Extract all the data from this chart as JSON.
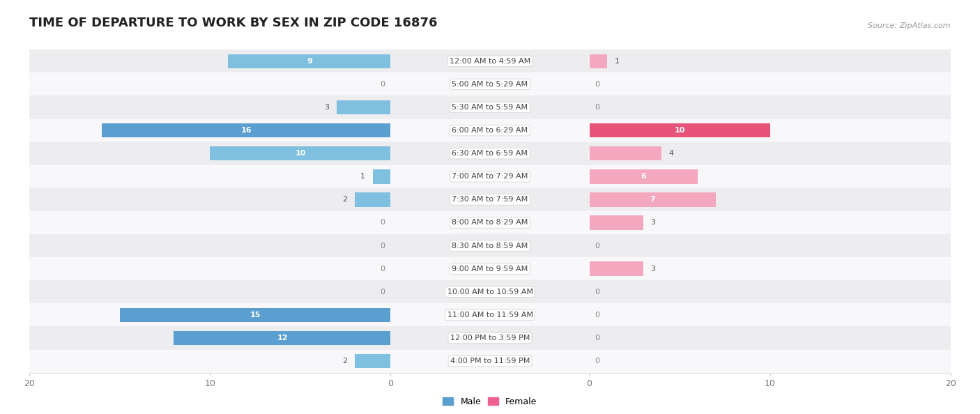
{
  "title": "TIME OF DEPARTURE TO WORK BY SEX IN ZIP CODE 16876",
  "source": "Source: ZipAtlas.com",
  "categories": [
    "12:00 AM to 4:59 AM",
    "5:00 AM to 5:29 AM",
    "5:30 AM to 5:59 AM",
    "6:00 AM to 6:29 AM",
    "6:30 AM to 6:59 AM",
    "7:00 AM to 7:29 AM",
    "7:30 AM to 7:59 AM",
    "8:00 AM to 8:29 AM",
    "8:30 AM to 8:59 AM",
    "9:00 AM to 9:59 AM",
    "10:00 AM to 10:59 AM",
    "11:00 AM to 11:59 AM",
    "12:00 PM to 3:59 PM",
    "4:00 PM to 11:59 PM"
  ],
  "male_values": [
    9,
    0,
    3,
    16,
    10,
    1,
    2,
    0,
    0,
    0,
    0,
    15,
    12,
    2
  ],
  "female_values": [
    1,
    0,
    0,
    10,
    4,
    6,
    7,
    3,
    0,
    3,
    0,
    0,
    0,
    0
  ],
  "male_color_normal": "#7fbfdf",
  "male_color_dark": "#5b9fd0",
  "female_color_normal": "#f4a8bf",
  "female_color_dark": "#e8537a",
  "male_highlight_indices": [
    3,
    11,
    12
  ],
  "female_highlight_indices": [
    3
  ],
  "xlim": 20,
  "row_bg_even": "#ededf0",
  "row_bg_odd": "#f8f8fa",
  "title_fontsize": 13,
  "source_fontsize": 8,
  "bar_label_fontsize": 8,
  "cat_label_fontsize": 8,
  "axis_fontsize": 9,
  "bar_height": 0.62,
  "legend_male_color": "#5b9fd0",
  "legend_female_color": "#f06090"
}
